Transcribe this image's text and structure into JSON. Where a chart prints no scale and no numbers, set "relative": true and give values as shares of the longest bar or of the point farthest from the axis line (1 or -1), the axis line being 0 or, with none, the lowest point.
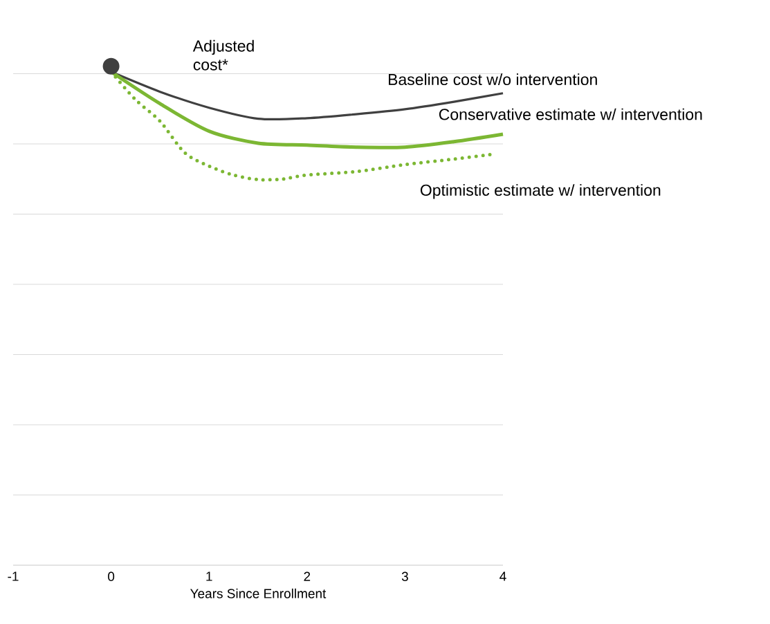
{
  "chart_data": {
    "type": "line",
    "relative": true,
    "xlabel": "Years Since Enrollment",
    "xlim": [
      -1,
      4
    ],
    "xticks": [
      -1,
      0,
      1,
      2,
      3,
      4
    ],
    "grid": "y",
    "annotations": [
      "Adjusted cost*"
    ],
    "series": [
      {
        "name": "Baseline cost w/o intervention",
        "color": "#404040",
        "line_style": "solid",
        "x": [
          0,
          0.5,
          1,
          1.5,
          2,
          2.5,
          3,
          3.5,
          4
        ],
        "values": [
          0.989,
          0.949,
          0.917,
          0.895,
          0.896,
          0.904,
          0.914,
          0.929,
          0.946
        ]
      },
      {
        "name": "Conservative estimate w/ intervention",
        "color": "#7cb733",
        "line_style": "solid",
        "x": [
          0,
          0.5,
          1,
          1.5,
          2,
          2.5,
          3,
          3.5,
          4
        ],
        "values": [
          0.989,
          0.925,
          0.87,
          0.846,
          0.842,
          0.838,
          0.838,
          0.849,
          0.864
        ]
      },
      {
        "name": "Optimistic estimate w/ intervention",
        "color": "#7cb733",
        "line_style": "dotted",
        "x": [
          0,
          0.25,
          0.5,
          0.75,
          1,
          1.25,
          1.5,
          1.75,
          2,
          2.5,
          3,
          3.5,
          3.91
        ],
        "values": [
          0.989,
          0.933,
          0.89,
          0.827,
          0.8,
          0.782,
          0.773,
          0.774,
          0.782,
          0.789,
          0.803,
          0.814,
          0.824
        ]
      },
      {
        "type": "scatter",
        "marker": "circle",
        "color": "#404040",
        "x": [
          0
        ],
        "values": [
          1
        ]
      }
    ]
  }
}
